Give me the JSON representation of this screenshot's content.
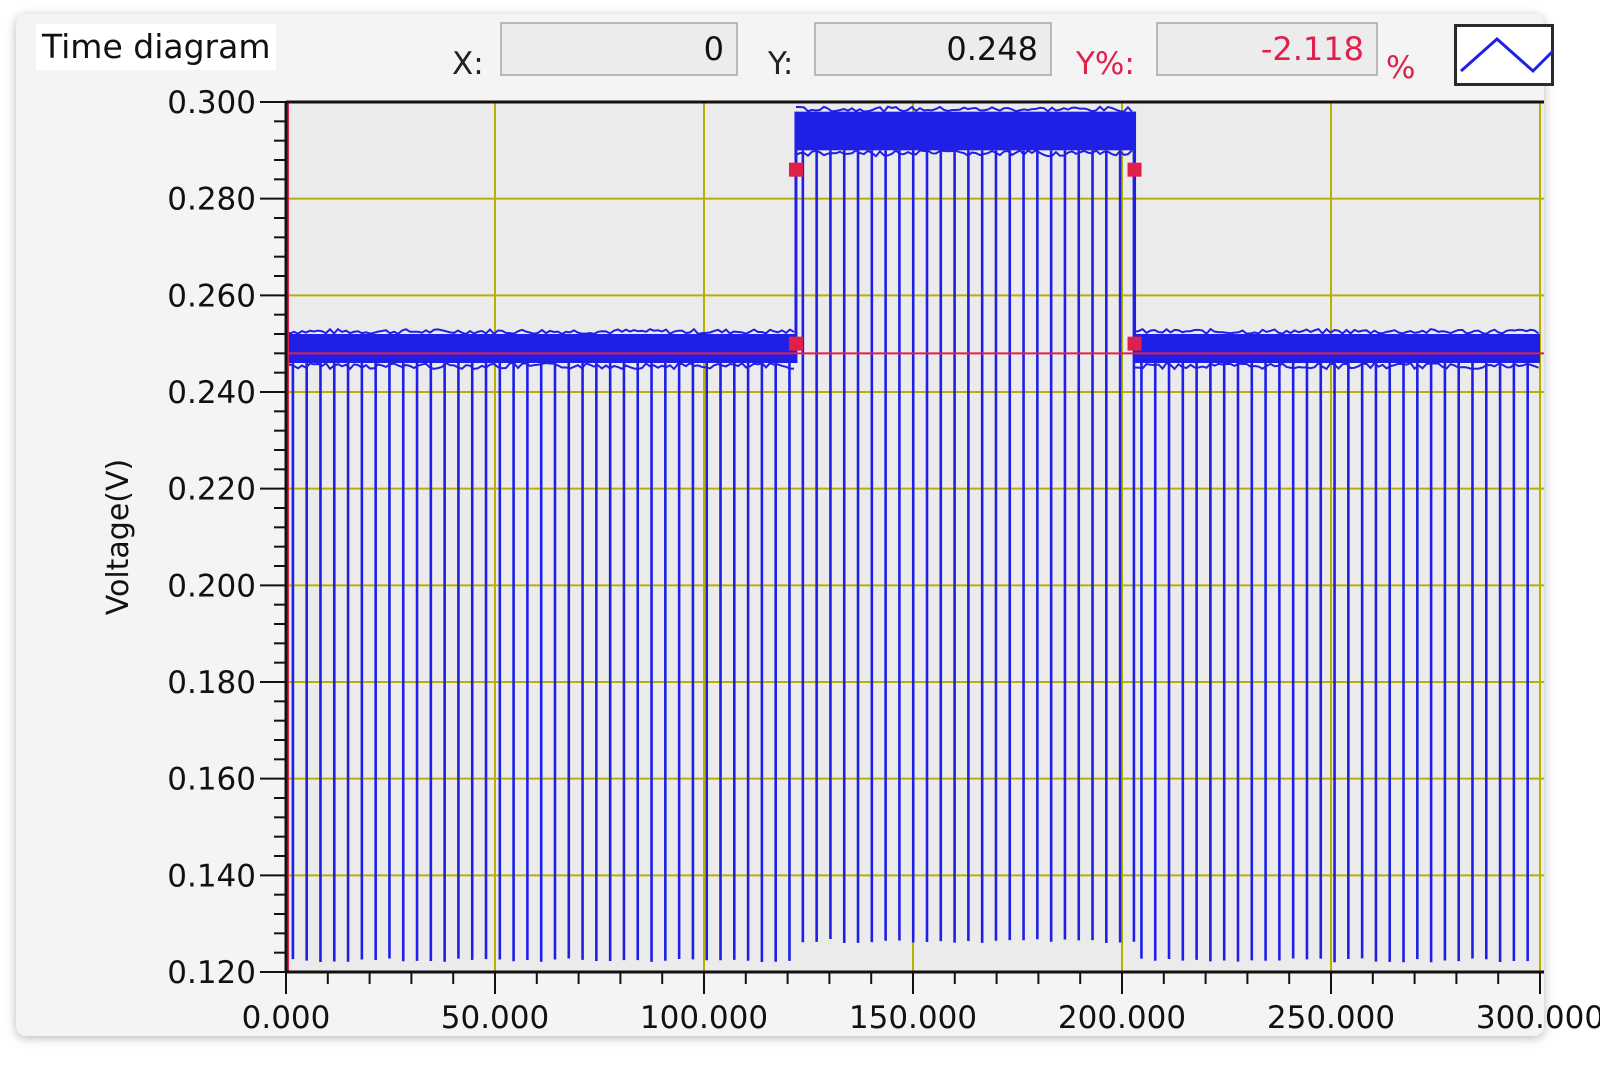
{
  "panel": {
    "title": "Time diagram",
    "cursor": {
      "x_label": "X:",
      "x_value": "0",
      "y_label": "Y:",
      "y_value": "0.248",
      "ypct_label": "Y%:",
      "ypct_value": "-2.118",
      "ypct_unit": "%"
    },
    "legend_icon": "triangle-wave-icon"
  },
  "chart_data": {
    "type": "line",
    "title": "",
    "xlabel": "",
    "ylabel": "Voltage(V)",
    "xlim": [
      0,
      300
    ],
    "ylim": [
      0.12,
      0.3
    ],
    "x_ticks": [
      "0.000",
      "50.000",
      "100.000",
      "150.000",
      "200.000",
      "250.000",
      "300.000"
    ],
    "y_ticks": [
      "0.120",
      "0.140",
      "0.160",
      "0.180",
      "0.200",
      "0.220",
      "0.240",
      "0.260",
      "0.280",
      "0.300"
    ],
    "grid": true,
    "series": [
      {
        "color": "#1f1fe6",
        "description": "pulsed voltage signal",
        "segments": [
          {
            "x_start": 0,
            "x_end": 122,
            "baseline_low": 0.246,
            "baseline_high": 0.252,
            "pulse_min": 0.122
          },
          {
            "x_start": 122,
            "x_end": 203,
            "baseline_low": 0.29,
            "baseline_high": 0.298,
            "pulse_min": 0.126
          },
          {
            "x_start": 203,
            "x_end": 300,
            "baseline_low": 0.246,
            "baseline_high": 0.252,
            "pulse_min": 0.122
          }
        ],
        "pulse_period": 3.3
      }
    ],
    "cursor_line_y": 0.248,
    "cursor_line_x": 0,
    "markers": [
      {
        "x": 122,
        "y": 0.25
      },
      {
        "x": 122,
        "y": 0.286
      },
      {
        "x": 203,
        "y": 0.286
      },
      {
        "x": 203,
        "y": 0.25
      }
    ],
    "colors": {
      "signal": "#1f1fe6",
      "cursor": "#e0204a",
      "grid": "#b8b000",
      "plot_bg": "#ebebeb"
    }
  }
}
